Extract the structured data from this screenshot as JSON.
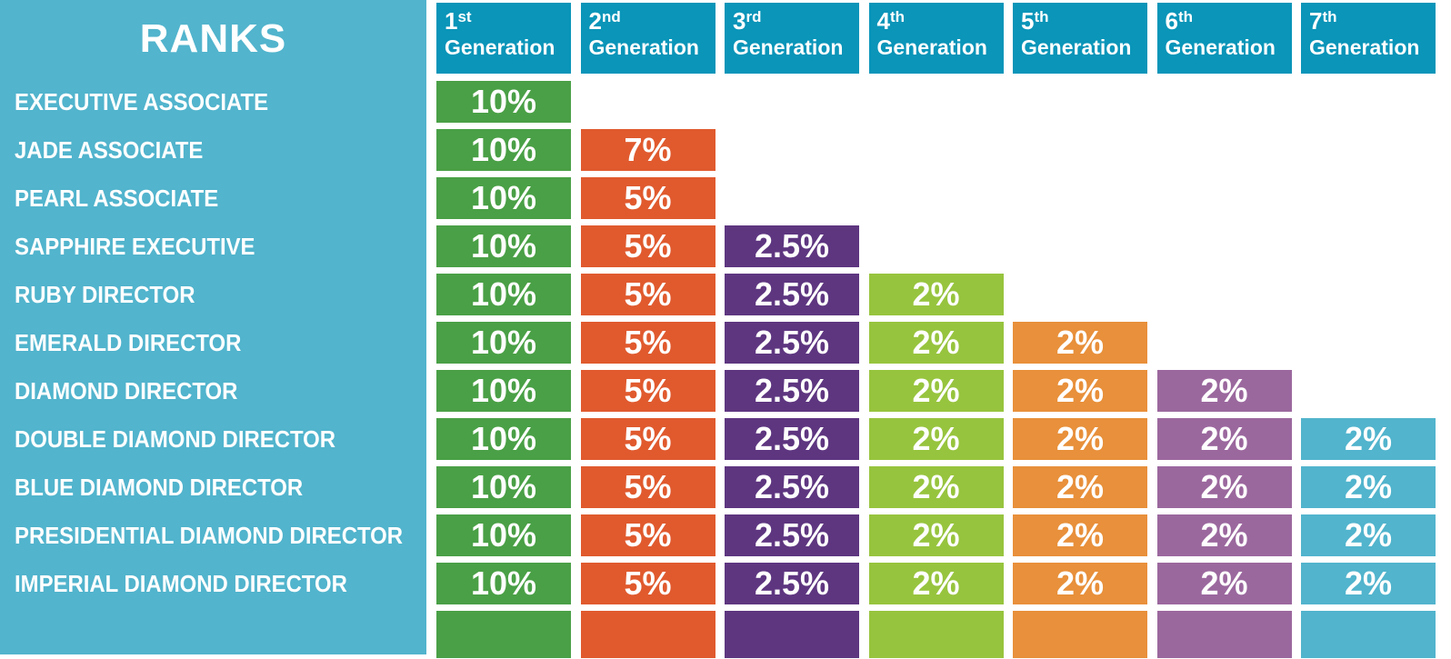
{
  "title": "RANKS",
  "chart_data": {
    "type": "table",
    "columns": [
      {
        "ordinal": "1",
        "suffix": "st",
        "word": "Generation",
        "color": "#4aa046"
      },
      {
        "ordinal": "2",
        "suffix": "nd",
        "word": "Generation",
        "color": "#e05a2e"
      },
      {
        "ordinal": "3",
        "suffix": "rd",
        "word": "Generation",
        "color": "#5e3680"
      },
      {
        "ordinal": "4",
        "suffix": "th",
        "word": "Generation",
        "color": "#97c43e"
      },
      {
        "ordinal": "5",
        "suffix": "th",
        "word": "Generation",
        "color": "#e8903b"
      },
      {
        "ordinal": "6",
        "suffix": "th",
        "word": "Generation",
        "color": "#9b689e"
      },
      {
        "ordinal": "7",
        "suffix": "th",
        "word": "Generation",
        "color": "#52b4cd"
      }
    ],
    "rows": [
      {
        "rank": "EXECUTIVE ASSOCIATE",
        "values": [
          "10%"
        ]
      },
      {
        "rank": "JADE ASSOCIATE",
        "values": [
          "10%",
          "7%"
        ]
      },
      {
        "rank": "PEARL ASSOCIATE",
        "values": [
          "10%",
          "5%"
        ]
      },
      {
        "rank": "SAPPHIRE EXECUTIVE",
        "values": [
          "10%",
          "5%",
          "2.5%"
        ]
      },
      {
        "rank": "RUBY DIRECTOR",
        "values": [
          "10%",
          "5%",
          "2.5%",
          "2%"
        ]
      },
      {
        "rank": "EMERALD DIRECTOR",
        "values": [
          "10%",
          "5%",
          "2.5%",
          "2%",
          "2%"
        ]
      },
      {
        "rank": "DIAMOND DIRECTOR",
        "values": [
          "10%",
          "5%",
          "2.5%",
          "2%",
          "2%",
          "2%"
        ]
      },
      {
        "rank": "DOUBLE DIAMOND DIRECTOR",
        "values": [
          "10%",
          "5%",
          "2.5%",
          "2%",
          "2%",
          "2%",
          "2%"
        ]
      },
      {
        "rank": "BLUE DIAMOND DIRECTOR",
        "values": [
          "10%",
          "5%",
          "2.5%",
          "2%",
          "2%",
          "2%",
          "2%"
        ]
      },
      {
        "rank": "PRESIDENTIAL DIAMOND DIRECTOR",
        "values": [
          "10%",
          "5%",
          "2.5%",
          "2%",
          "2%",
          "2%",
          "2%"
        ]
      },
      {
        "rank": "IMPERIAL DIAMOND DIRECTOR",
        "values": [
          "10%",
          "5%",
          "2.5%",
          "2%",
          "2%",
          "2%",
          "2%"
        ]
      }
    ],
    "header_color": "#0a95b9",
    "sidebar_color": "#52b4cd"
  }
}
